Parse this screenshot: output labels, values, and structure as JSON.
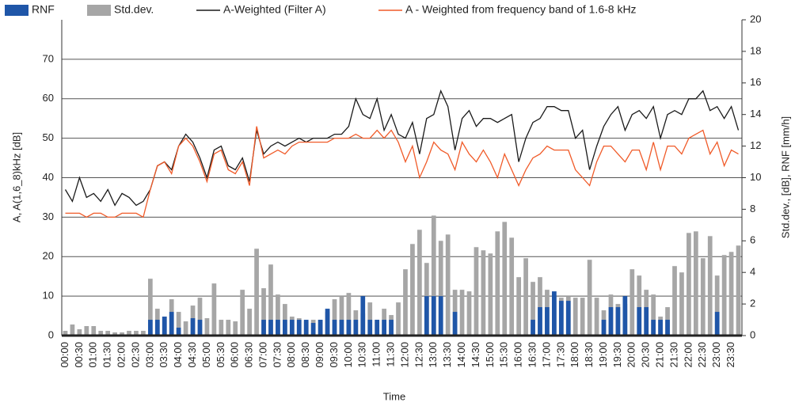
{
  "chart_data": {
    "type": "bar-line",
    "y_label": "A, A(1,6_8)kHz [dB]",
    "y2_label": "Std.dev., [dB], RNF [mm/h]",
    "x_label": "Time",
    "categories": [
      "00:00",
      null,
      "00:30",
      null,
      "01:00",
      null,
      "01:30",
      null,
      "02:00",
      null,
      "02:30",
      null,
      "03:00",
      null,
      "03:30",
      null,
      "04:00",
      null,
      "04:30",
      null,
      "05:00",
      null,
      "05:30",
      null,
      "06:00",
      null,
      "06:30",
      null,
      "07:00",
      null,
      "07:30",
      null,
      "08:00",
      null,
      "08:30",
      null,
      "09:00",
      null,
      "09:30",
      null,
      "10:00",
      null,
      "10:30",
      null,
      "11:00",
      null,
      "11:30",
      null,
      "12:00",
      null,
      "12:30",
      null,
      "13:00",
      null,
      "13:30",
      null,
      "14:00",
      null,
      "14:30",
      null,
      "15:00",
      null,
      "15:30",
      null,
      "16:00",
      null,
      "16:30",
      null,
      "17:00",
      null,
      "17:30",
      null,
      "18:00",
      null,
      "18:30",
      null,
      "19:00",
      null,
      "19:30",
      null,
      "20:00",
      null,
      "20:30",
      null,
      "21:00",
      null,
      "21:30",
      null,
      "22:00",
      null,
      "22:30",
      null,
      "23:00",
      null,
      "23:30",
      null
    ],
    "series": [
      {
        "name": "RNF",
        "kind": "bar",
        "axis": "y2",
        "color": "#1f56a8",
        "values": [
          0,
          0,
          0,
          0,
          0,
          0,
          0,
          0,
          0,
          0,
          0,
          0,
          1.0,
          1.0,
          1.2,
          1.5,
          0.5,
          0,
          1.1,
          1.0,
          0,
          0,
          0,
          0,
          0,
          0,
          0,
          0,
          1.0,
          1.0,
          1.0,
          1.0,
          1.0,
          1.0,
          1.0,
          0.8,
          1.0,
          1.7,
          1.0,
          1.0,
          1.0,
          1.0,
          2.5,
          1.0,
          1.0,
          1.0,
          1.0,
          0,
          0,
          0,
          0,
          2.5,
          2.5,
          2.5,
          0,
          1.5,
          0,
          0,
          0,
          0,
          0,
          0,
          0,
          0,
          0,
          0,
          1.0,
          1.8,
          1.8,
          2.8,
          2.2,
          2.2,
          0,
          0,
          0,
          0,
          1.0,
          1.8,
          1.8,
          2.5,
          0,
          1.8,
          1.8,
          1.0,
          1.0,
          1.0,
          0,
          0,
          0,
          0,
          0,
          0,
          1.5,
          0,
          0,
          0
        ]
      },
      {
        "name": "Std.dev.",
        "kind": "bar",
        "axis": "y2",
        "color": "#a6a6a6",
        "values": [
          0.3,
          0.7,
          0.4,
          0.6,
          0.6,
          0.3,
          0.3,
          0.2,
          0.2,
          0.3,
          0.3,
          0.3,
          3.6,
          1.7,
          1.2,
          2.3,
          1.5,
          0.9,
          1.9,
          2.4,
          1.1,
          3.3,
          1.0,
          1.0,
          0.9,
          2.9,
          1.7,
          5.5,
          3.0,
          4.5,
          2.6,
          2.0,
          1.2,
          1.1,
          0.9,
          1.0,
          1.0,
          1.5,
          2.3,
          2.5,
          2.7,
          1.6,
          1.4,
          2.1,
          1.0,
          1.7,
          1.3,
          2.1,
          4.2,
          5.8,
          6.7,
          4.6,
          7.6,
          6.0,
          6.4,
          2.9,
          2.9,
          2.8,
          5.6,
          5.4,
          5.2,
          6.6,
          7.2,
          6.2,
          3.7,
          4.9,
          3.4,
          3.7,
          2.9,
          2.5,
          2.4,
          2.5,
          2.4,
          2.4,
          4.8,
          2.4,
          1.6,
          2.6,
          2.0,
          2.0,
          4.2,
          3.8,
          2.9,
          2.6,
          1.2,
          1.8,
          4.4,
          4.0,
          6.5,
          6.6,
          4.9,
          6.3,
          3.8,
          5.1,
          5.3,
          5.7
        ]
      },
      {
        "name": "A-Weighted (Filter A)",
        "kind": "line",
        "color": "#1a1a1a",
        "values": [
          37,
          34,
          40,
          35,
          36,
          34,
          37,
          33,
          36,
          35,
          33,
          34,
          37,
          43,
          44,
          42,
          48,
          51,
          49,
          45,
          40,
          47,
          48,
          43,
          42,
          45,
          39,
          52,
          46,
          48,
          49,
          48,
          49,
          50,
          49,
          50,
          50,
          50,
          51,
          51,
          53,
          60,
          56,
          55,
          60,
          52,
          56,
          51,
          50,
          54,
          46,
          55,
          56,
          62,
          58,
          47,
          55,
          57,
          53,
          55,
          55,
          54,
          55,
          56,
          44,
          50,
          54,
          55,
          58,
          58,
          57,
          57,
          50,
          52,
          42,
          48,
          53,
          56,
          58,
          52,
          56,
          57,
          55,
          58,
          50,
          56,
          57,
          56,
          60,
          60,
          62,
          57,
          58,
          55,
          58,
          52
        ]
      },
      {
        "name": "A - Weighted from frequency band of 1.6-8 kHz",
        "kind": "line",
        "color": "#f05a28",
        "values": [
          31,
          31,
          31,
          30,
          31,
          31,
          30,
          30,
          31,
          31,
          31,
          30,
          37,
          43,
          44,
          41,
          48,
          50,
          48,
          44,
          39,
          46,
          47,
          42,
          41,
          44,
          38,
          53,
          45,
          46,
          47,
          46,
          48,
          49,
          49,
          49,
          49,
          49,
          50,
          50,
          50,
          51,
          50,
          50,
          52,
          50,
          52,
          49,
          44,
          48,
          40,
          44,
          49,
          47,
          46,
          42,
          49,
          46,
          44,
          47,
          44,
          40,
          46,
          42,
          38,
          42,
          45,
          46,
          48,
          47,
          47,
          47,
          42,
          40,
          38,
          44,
          48,
          48,
          46,
          44,
          47,
          47,
          42,
          49,
          42,
          48,
          48,
          46,
          50,
          51,
          52,
          46,
          49,
          43,
          47,
          46
        ]
      }
    ],
    "ylim": [
      0,
      80
    ],
    "yticks": [
      0,
      10,
      20,
      30,
      40,
      50,
      60,
      70
    ],
    "y2lim": [
      0,
      20
    ],
    "y2ticks": [
      0,
      2,
      4,
      6,
      8,
      10,
      12,
      14,
      16,
      18,
      20
    ],
    "grid": true,
    "legend": "top"
  }
}
